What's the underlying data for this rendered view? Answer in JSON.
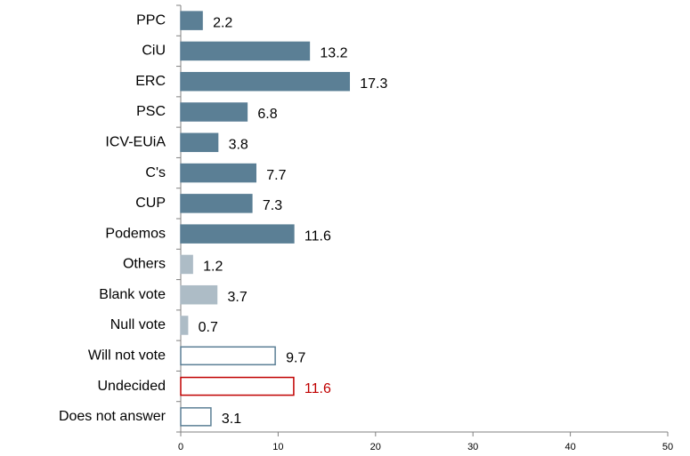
{
  "chart_data": {
    "type": "barh",
    "categories": [
      "PPC",
      "CiU",
      "ERC",
      "PSC",
      "ICV-EUiA",
      "C's",
      "CUP",
      "Podemos",
      "Others",
      "Blank vote",
      "Null vote",
      "Will not vote",
      "Undecided",
      "Does not answer"
    ],
    "values": [
      2.2,
      13.2,
      17.3,
      6.8,
      3.8,
      7.7,
      7.3,
      11.6,
      1.2,
      3.7,
      0.7,
      9.7,
      11.6,
      3.1
    ],
    "colors": [
      "#5b7f95",
      "#5b7f95",
      "#5b7f95",
      "#5b7f95",
      "#5b7f95",
      "#5b7f95",
      "#5b7f95",
      "#5b7f95",
      "#adbcc6",
      "#adbcc6",
      "#adbcc6",
      "#ffffff",
      "#ffffff",
      "#ffffff"
    ],
    "edge_colors": [
      "#5b7f95",
      "#5b7f95",
      "#5b7f95",
      "#5b7f95",
      "#5b7f95",
      "#5b7f95",
      "#5b7f95",
      "#5b7f95",
      "#adbcc6",
      "#adbcc6",
      "#adbcc6",
      "#5b7f95",
      "#c00000",
      "#5b7f95"
    ],
    "label_colors": [
      "#000000",
      "#000000",
      "#000000",
      "#000000",
      "#000000",
      "#000000",
      "#000000",
      "#000000",
      "#000000",
      "#000000",
      "#000000",
      "#000000",
      "#c00000",
      "#000000"
    ],
    "xlim": [
      0,
      50
    ],
    "xticks": [
      0,
      10,
      20,
      30,
      40,
      50
    ],
    "grid": false
  }
}
